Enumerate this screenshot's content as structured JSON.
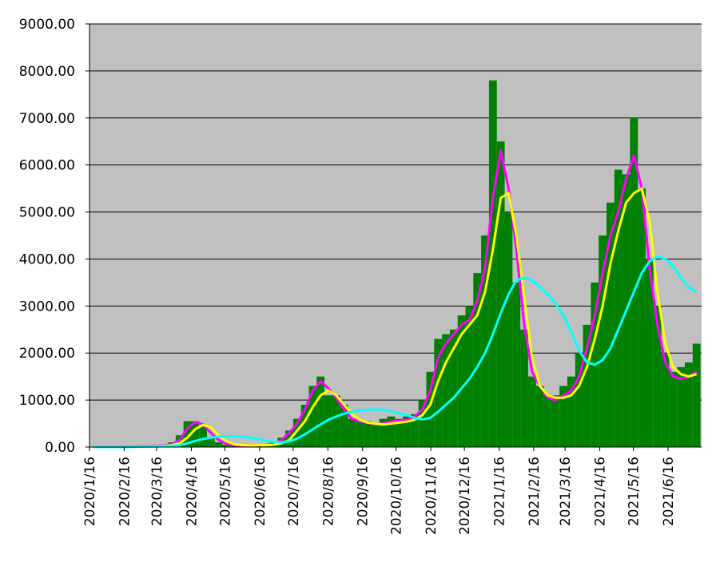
{
  "chart_data": {
    "type": "combo",
    "x": [
      "2020/1/16",
      "2020/1/23",
      "2020/1/30",
      "2020/2/6",
      "2020/2/13",
      "2020/2/20",
      "2020/2/27",
      "2020/3/5",
      "2020/3/12",
      "2020/3/19",
      "2020/3/26",
      "2020/4/2",
      "2020/4/9",
      "2020/4/16",
      "2020/4/23",
      "2020/4/30",
      "2020/5/7",
      "2020/5/14",
      "2020/5/21",
      "2020/5/28",
      "2020/6/4",
      "2020/6/11",
      "2020/6/18",
      "2020/6/25",
      "2020/7/2",
      "2020/7/9",
      "2020/7/16",
      "2020/7/23",
      "2020/7/30",
      "2020/8/6",
      "2020/8/13",
      "2020/8/20",
      "2020/8/27",
      "2020/9/3",
      "2020/9/10",
      "2020/9/17",
      "2020/9/24",
      "2020/10/1",
      "2020/10/8",
      "2020/10/15",
      "2020/10/22",
      "2020/10/29",
      "2020/11/5",
      "2020/11/12",
      "2020/11/19",
      "2020/11/26",
      "2020/12/3",
      "2020/12/10",
      "2020/12/17",
      "2020/12/24",
      "2020/12/31",
      "2021/1/7",
      "2021/1/14",
      "2021/1/21",
      "2021/1/28",
      "2021/2/4",
      "2021/2/11",
      "2021/2/18",
      "2021/2/25",
      "2021/3/4",
      "2021/3/11",
      "2021/3/18",
      "2021/3/25",
      "2021/4/1",
      "2021/4/8",
      "2021/4/15",
      "2021/4/22",
      "2021/4/29",
      "2021/5/6",
      "2021/5/13",
      "2021/5/20",
      "2021/5/27",
      "2021/6/3",
      "2021/6/10",
      "2021/6/17",
      "2021/6/24",
      "2021/7/1",
      "2021/7/8"
    ],
    "series": [
      {
        "type": "bar",
        "color": "#008000",
        "values": [
          0,
          0,
          5,
          2,
          10,
          15,
          20,
          30,
          50,
          40,
          100,
          250,
          550,
          550,
          450,
          200,
          100,
          50,
          30,
          40,
          40,
          40,
          40,
          100,
          200,
          350,
          600,
          900,
          1300,
          1500,
          1100,
          1100,
          900,
          600,
          550,
          550,
          500,
          600,
          650,
          600,
          650,
          700,
          1000,
          1600,
          2300,
          2400,
          2500,
          2800,
          3000,
          3700,
          4500,
          7800,
          6500,
          5000,
          3500,
          2500,
          1500,
          1300,
          1100,
          1100,
          1300,
          1500,
          2000,
          2600,
          3500,
          4500,
          5200,
          5900,
          5800,
          7000,
          5500,
          4000,
          3000,
          2000,
          1600,
          1700,
          1800,
          2200
        ]
      },
      {
        "type": "line",
        "color": "#ff00ff",
        "values": [
          0,
          0,
          0,
          0,
          5,
          10,
          15,
          20,
          30,
          40,
          60,
          150,
          400,
          530,
          480,
          300,
          150,
          70,
          40,
          30,
          40,
          40,
          45,
          70,
          150,
          300,
          500,
          800,
          1200,
          1400,
          1250,
          1050,
          800,
          600,
          550,
          520,
          480,
          500,
          550,
          560,
          580,
          650,
          800,
          1200,
          1900,
          2200,
          2400,
          2600,
          2700,
          3100,
          3800,
          5300,
          6300,
          5500,
          4200,
          2600,
          1600,
          1300,
          1050,
          1000,
          1100,
          1200,
          1500,
          2100,
          2800,
          3700,
          4500,
          5000,
          5700,
          6200,
          5500,
          3800,
          2600,
          1800,
          1500,
          1450,
          1500,
          1600
        ]
      },
      {
        "type": "line",
        "color": "#ffff00",
        "values": [
          0,
          0,
          0,
          0,
          2,
          5,
          10,
          15,
          20,
          30,
          40,
          80,
          200,
          380,
          470,
          420,
          250,
          120,
          60,
          40,
          35,
          40,
          40,
          50,
          80,
          150,
          350,
          550,
          850,
          1100,
          1200,
          1100,
          900,
          700,
          580,
          520,
          500,
          480,
          500,
          520,
          540,
          580,
          680,
          900,
          1400,
          1800,
          2100,
          2400,
          2600,
          2800,
          3300,
          4200,
          5300,
          5400,
          4500,
          3200,
          1900,
          1300,
          1100,
          1050,
          1050,
          1100,
          1300,
          1700,
          2300,
          3000,
          3900,
          4600,
          5200,
          5400,
          5500,
          4800,
          3300,
          2200,
          1700,
          1550,
          1500,
          1550
        ]
      },
      {
        "type": "line",
        "color": "#00ffff",
        "values": [
          0,
          0,
          0,
          0,
          0,
          5,
          10,
          10,
          15,
          20,
          25,
          40,
          80,
          130,
          170,
          200,
          220,
          230,
          230,
          220,
          200,
          170,
          140,
          110,
          100,
          120,
          180,
          270,
          380,
          480,
          580,
          650,
          710,
          750,
          780,
          790,
          800,
          790,
          760,
          720,
          680,
          620,
          590,
          620,
          750,
          900,
          1050,
          1250,
          1450,
          1700,
          2000,
          2400,
          2850,
          3250,
          3550,
          3600,
          3550,
          3400,
          3250,
          3050,
          2800,
          2450,
          2050,
          1800,
          1750,
          1850,
          2100,
          2500,
          2900,
          3300,
          3700,
          3950,
          4050,
          4000,
          3850,
          3600,
          3400,
          3300
        ]
      }
    ],
    "xlim": [
      "2020/1/16",
      "2021/7/16"
    ],
    "xticks": [
      "2020/1/16",
      "2020/2/16",
      "2020/3/16",
      "2020/4/16",
      "2020/5/16",
      "2020/6/16",
      "2020/7/16",
      "2020/8/16",
      "2020/9/16",
      "2020/10/16",
      "2020/11/16",
      "2020/12/16",
      "2021/1/16",
      "2021/2/16",
      "2021/3/16",
      "2021/4/16",
      "2021/5/16",
      "2021/6/16"
    ],
    "ylim": [
      0,
      9000
    ],
    "yticks": [
      {
        "value": 0,
        "label": "0.00"
      },
      {
        "value": 1000,
        "label": "1000.00"
      },
      {
        "value": 2000,
        "label": "2000.00"
      },
      {
        "value": 3000,
        "label": "3000.00"
      },
      {
        "value": 4000,
        "label": "4000.00"
      },
      {
        "value": 5000,
        "label": "5000.00"
      },
      {
        "value": 6000,
        "label": "6000.00"
      },
      {
        "value": 7000,
        "label": "7000.00"
      },
      {
        "value": 8000,
        "label": "8000.00"
      },
      {
        "value": 9000,
        "label": "9000.00"
      }
    ],
    "grid": true,
    "background": "#c0c0c0"
  }
}
